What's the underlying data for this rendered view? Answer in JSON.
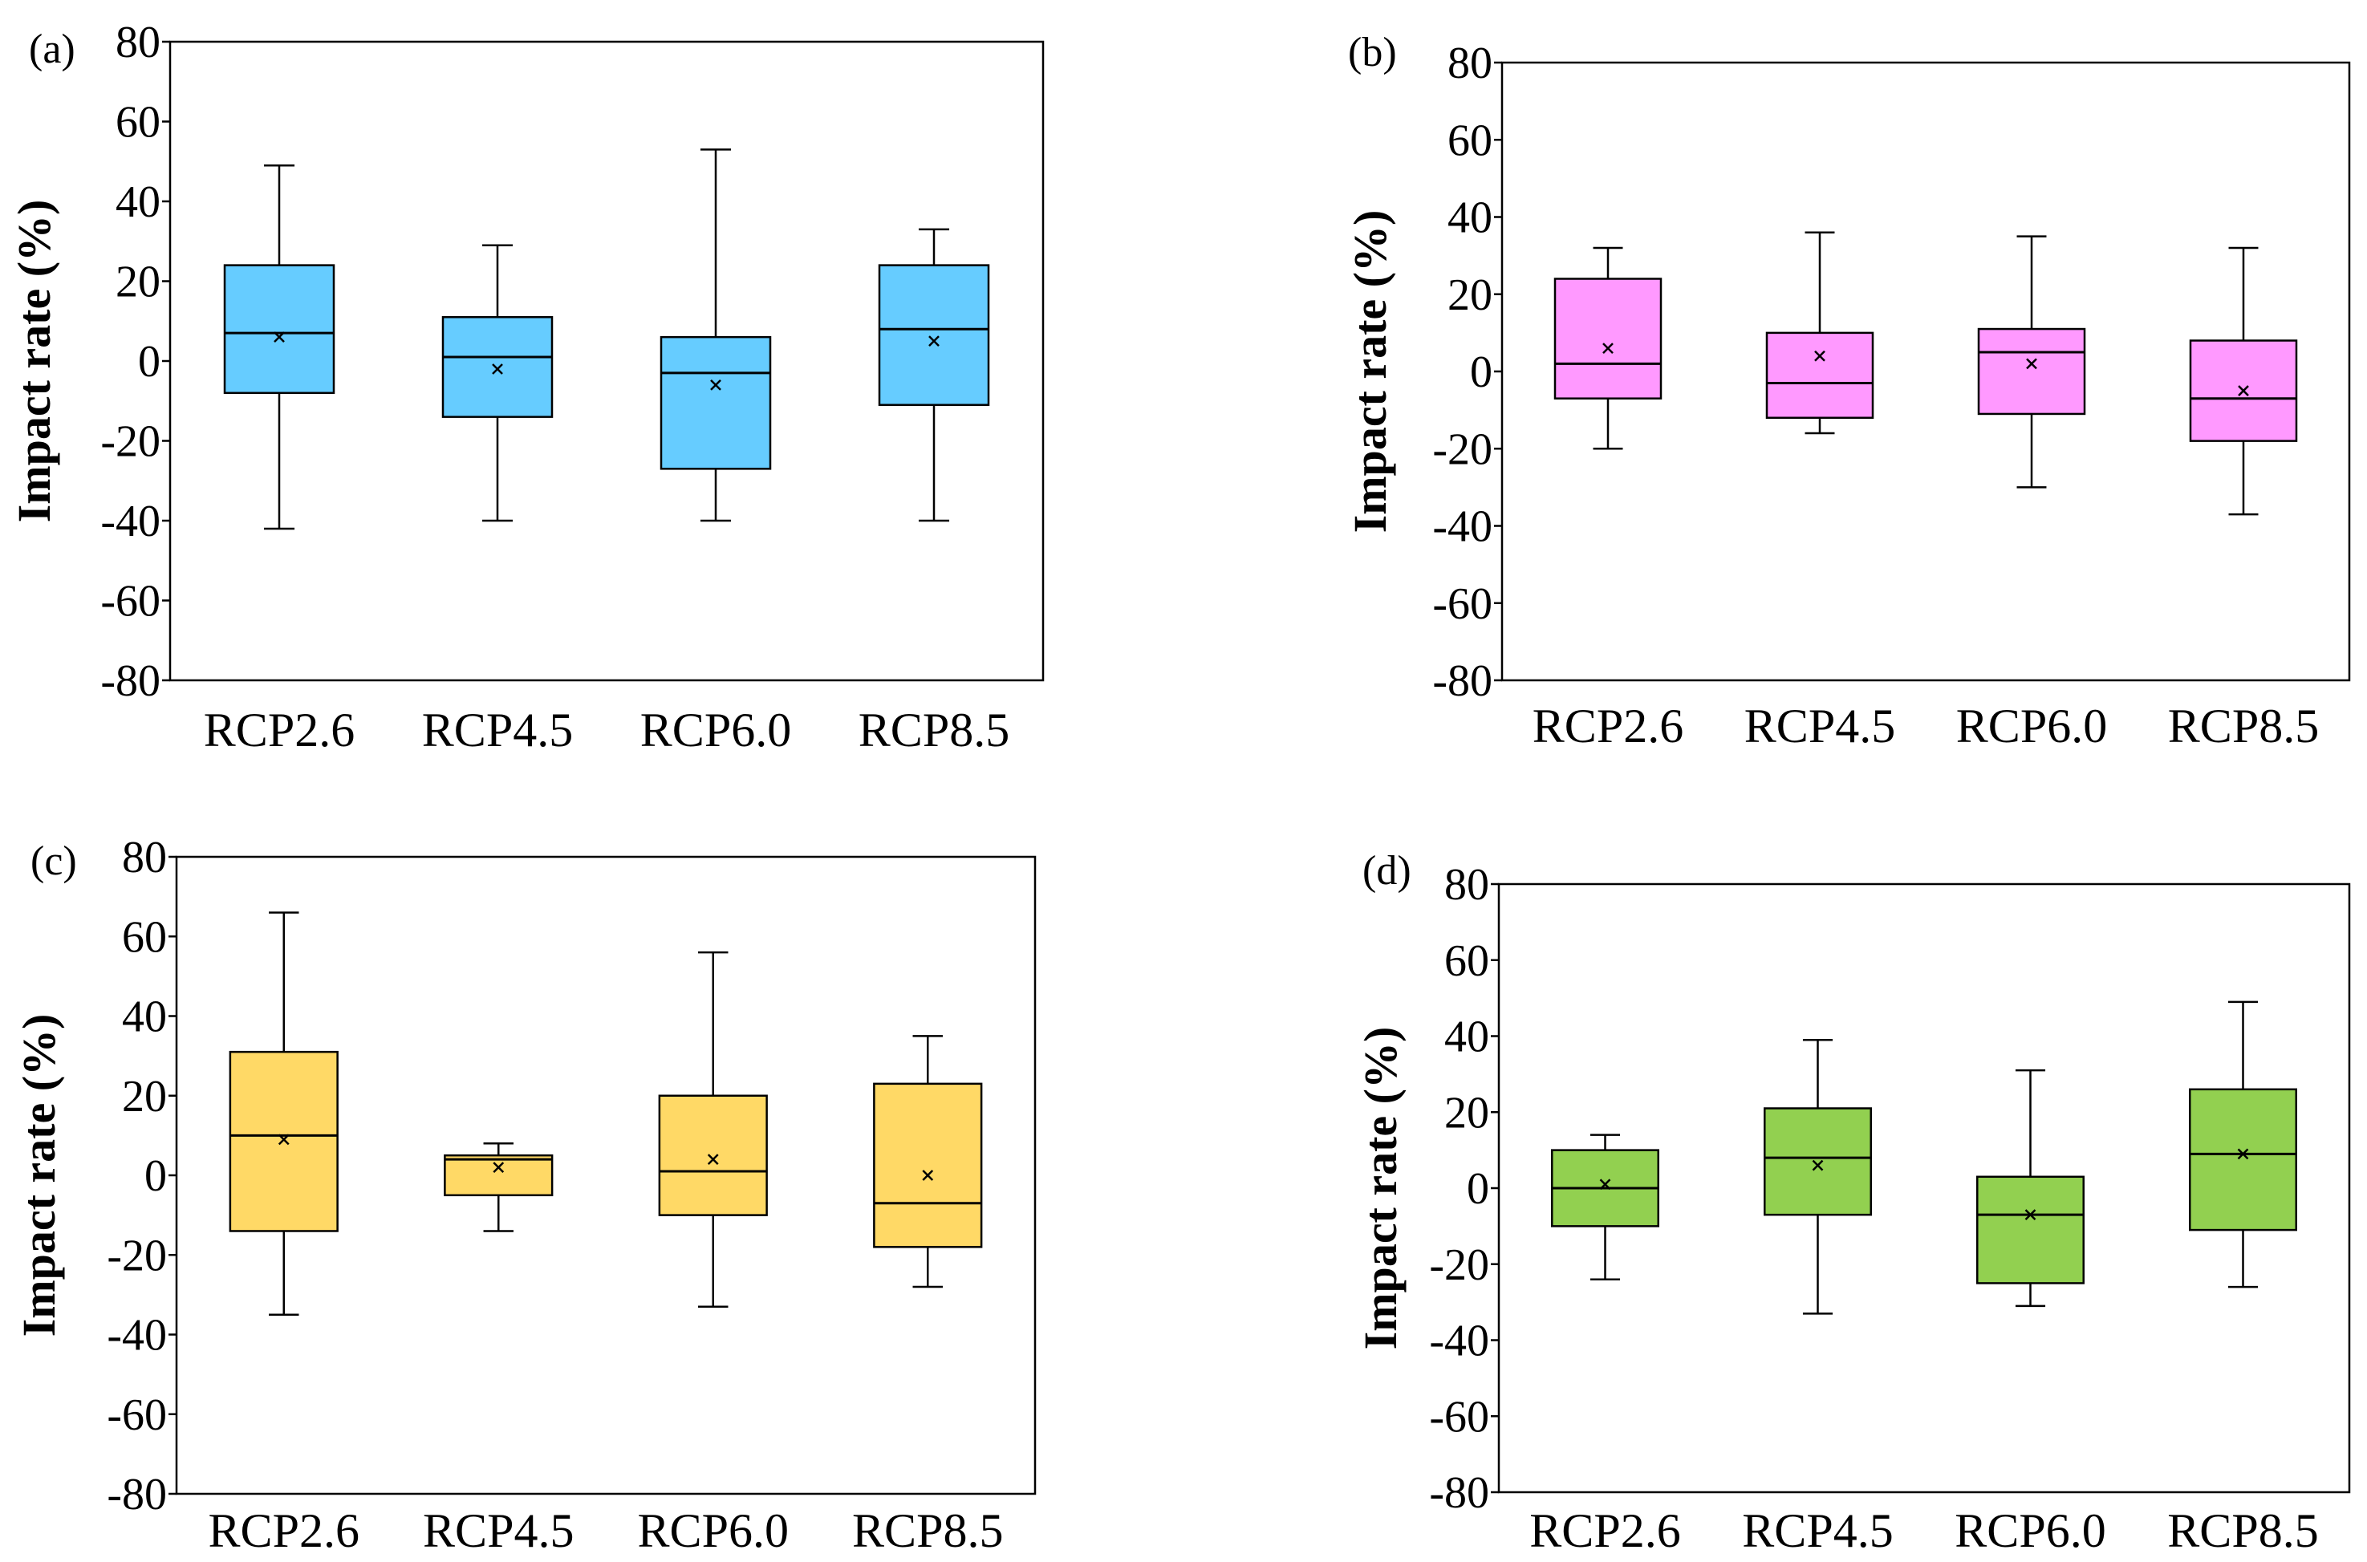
{
  "figure": {
    "y_label": "Impact rate (%)",
    "categories": [
      "RCP2.6",
      "RCP4.5",
      "RCP6.0",
      "RCP8.5"
    ],
    "yticks": [
      "80",
      "60",
      "40",
      "20",
      "0",
      "-20",
      "-40",
      "-60",
      "-80"
    ]
  },
  "chart_data": [
    {
      "type": "boxplot",
      "panel_label": "(a)",
      "fill": "#66CCFF",
      "ylabel": "Impact rate (%)",
      "ylim": [
        -80,
        80
      ],
      "categories": [
        "RCP2.6",
        "RCP4.5",
        "RCP6.0",
        "RCP8.5"
      ],
      "boxes": [
        {
          "min": -42,
          "q1": -8,
          "median": 7,
          "q3": 24,
          "max": 49,
          "mean": 6
        },
        {
          "min": -40,
          "q1": -14,
          "median": 1,
          "q3": 11,
          "max": 29,
          "mean": -2
        },
        {
          "min": -40,
          "q1": -27,
          "median": -3,
          "q3": 6,
          "max": 53,
          "mean": -6
        },
        {
          "min": -40,
          "q1": -11,
          "median": 8,
          "q3": 24,
          "max": 33,
          "mean": 5
        }
      ]
    },
    {
      "type": "boxplot",
      "panel_label": "(b)",
      "fill": "#FF99FF",
      "ylabel": "Impact rate (%)",
      "ylim": [
        -80,
        80
      ],
      "categories": [
        "RCP2.6",
        "RCP4.5",
        "RCP6.0",
        "RCP8.5"
      ],
      "boxes": [
        {
          "min": -20,
          "q1": -7,
          "median": 2,
          "q3": 24,
          "max": 32,
          "mean": 6
        },
        {
          "min": -16,
          "q1": -12,
          "median": -3,
          "q3": 10,
          "max": 36,
          "mean": 4
        },
        {
          "min": -30,
          "q1": -11,
          "median": 5,
          "q3": 11,
          "max": 35,
          "mean": 2
        },
        {
          "min": -37,
          "q1": -18,
          "median": -7,
          "q3": 8,
          "max": 32,
          "mean": -5
        }
      ]
    },
    {
      "type": "boxplot",
      "panel_label": "(c)",
      "fill": "#FFD966",
      "ylabel": "Impact rate (%)",
      "ylim": [
        -80,
        80
      ],
      "categories": [
        "RCP2.6",
        "RCP4.5",
        "RCP6.0",
        "RCP8.5"
      ],
      "boxes": [
        {
          "min": -35,
          "q1": -14,
          "median": 10,
          "q3": 31,
          "max": 66,
          "mean": 9
        },
        {
          "min": -14,
          "q1": -5,
          "median": 4,
          "q3": 5,
          "max": 8,
          "mean": 2
        },
        {
          "min": -33,
          "q1": -10,
          "median": 1,
          "q3": 20,
          "max": 56,
          "mean": 4
        },
        {
          "min": -28,
          "q1": -18,
          "median": -7,
          "q3": 23,
          "max": 35,
          "mean": 0
        }
      ]
    },
    {
      "type": "boxplot",
      "panel_label": "(d)",
      "fill": "#92D050",
      "ylabel": "Impact rate (%)",
      "ylim": [
        -80,
        80
      ],
      "categories": [
        "RCP2.6",
        "RCP4.5",
        "RCP6.0",
        "RCP8.5"
      ],
      "boxes": [
        {
          "min": -24,
          "q1": -10,
          "median": 0,
          "q3": 10,
          "max": 14,
          "mean": 1
        },
        {
          "min": -33,
          "q1": -7,
          "median": 8,
          "q3": 21,
          "max": 39,
          "mean": 6
        },
        {
          "min": -31,
          "q1": -25,
          "median": -7,
          "q3": 3,
          "max": 31,
          "mean": -7
        },
        {
          "min": -26,
          "q1": -11,
          "median": 9,
          "q3": 26,
          "max": 49,
          "mean": 9
        }
      ]
    }
  ]
}
